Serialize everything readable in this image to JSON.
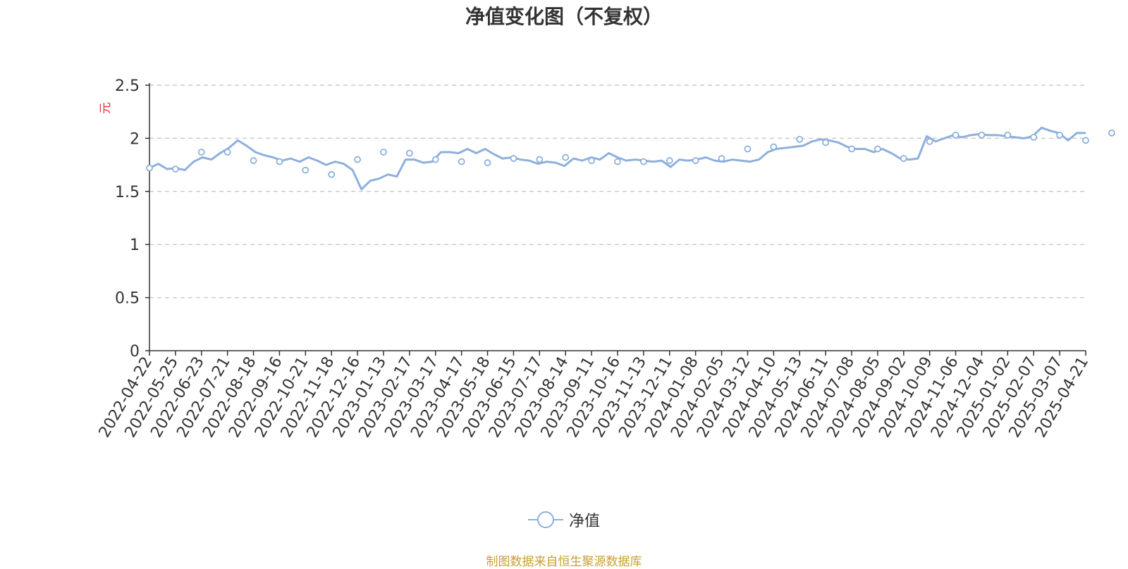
{
  "chart_data": {
    "type": "line",
    "title": "净值变化图（不复权）",
    "ylabel": "元",
    "ylim": [
      0,
      2.5
    ],
    "yticks": [
      "0",
      "0.5",
      "1",
      "1.5",
      "2",
      "2.5"
    ],
    "grid": "horizontal-dashed",
    "legend_placement": "bottom-center",
    "x_ticks": [
      "2022-04-22",
      "2022-05-25",
      "2022-06-23",
      "2022-07-21",
      "2022-08-18",
      "2022-09-16",
      "2022-10-21",
      "2022-11-18",
      "2022-12-16",
      "2023-01-13",
      "2023-02-17",
      "2023-03-17",
      "2023-04-17",
      "2023-05-18",
      "2023-06-15",
      "2023-07-17",
      "2023-08-14",
      "2023-09-11",
      "2023-10-16",
      "2023-11-13",
      "2023-12-11",
      "2024-01-08",
      "2024-02-05",
      "2024-03-12",
      "2024-04-10",
      "2024-05-13",
      "2024-06-11",
      "2024-07-08",
      "2024-08-05",
      "2024-09-02",
      "2024-10-09",
      "2024-11-06",
      "2024-12-04",
      "2025-01-02",
      "2025-02-07",
      "2025-03-07",
      "2025-04-21"
    ],
    "series": [
      {
        "name": "净值",
        "color": "#8eb0dc",
        "values": [
          1.72,
          1.76,
          1.71,
          1.72,
          1.7,
          1.78,
          1.82,
          1.8,
          1.86,
          1.91,
          1.98,
          1.93,
          1.87,
          1.84,
          1.82,
          1.79,
          1.81,
          1.78,
          1.82,
          1.79,
          1.75,
          1.78,
          1.76,
          1.7,
          1.52,
          1.6,
          1.62,
          1.66,
          1.64,
          1.8,
          1.8,
          1.77,
          1.78,
          1.87,
          1.87,
          1.86,
          1.9,
          1.86,
          1.9,
          1.85,
          1.81,
          1.82,
          1.8,
          1.79,
          1.76,
          1.78,
          1.77,
          1.74,
          1.81,
          1.79,
          1.82,
          1.8,
          1.86,
          1.82,
          1.79,
          1.8,
          1.79,
          1.78,
          1.79,
          1.73,
          1.8,
          1.79,
          1.8,
          1.82,
          1.79,
          1.78,
          1.8,
          1.79,
          1.78,
          1.8,
          1.87,
          1.9,
          1.91,
          1.92,
          1.93,
          1.97,
          1.99,
          1.98,
          1.96,
          1.92,
          1.9,
          1.9,
          1.87,
          1.9,
          1.86,
          1.81,
          1.8,
          1.81,
          2.02,
          1.97,
          2.0,
          2.03,
          2.01,
          2.03,
          2.04,
          2.03,
          2.03,
          2.02,
          2.01,
          2.0,
          2.02,
          2.1,
          2.07,
          2.05,
          1.98,
          2.05,
          2.05
        ],
        "markers": [
          1.72,
          1.71,
          1.87,
          1.87,
          1.79,
          1.78,
          1.7,
          1.66,
          1.8,
          1.87,
          1.86,
          1.8,
          1.78,
          1.77,
          1.81,
          1.8,
          1.82,
          1.79,
          1.78,
          1.78,
          1.79,
          1.79,
          1.81,
          1.9,
          1.92,
          1.99,
          1.96,
          1.9,
          1.9,
          1.81,
          1.97,
          2.03,
          2.03,
          2.03,
          2.01,
          2.03,
          1.98,
          2.05
        ]
      }
    ]
  },
  "legend": {
    "label": "净值"
  },
  "source": "制图数据来自恒生聚源数据库"
}
